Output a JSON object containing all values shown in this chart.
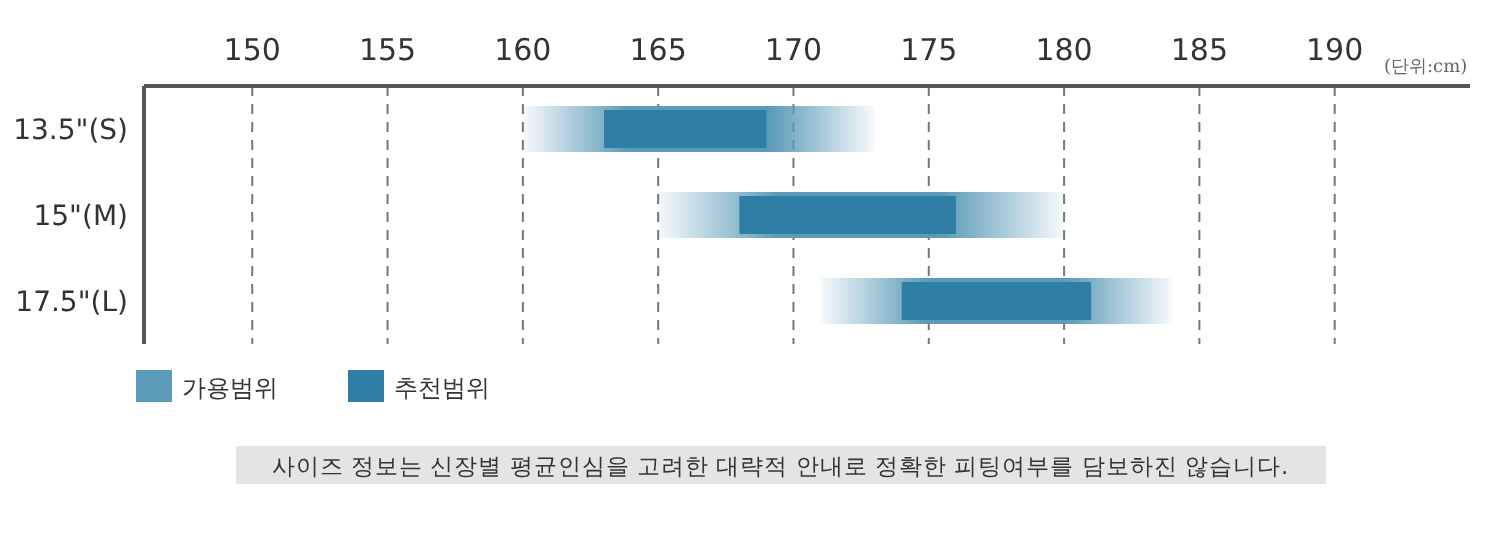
{
  "chart_data": {
    "type": "bar",
    "orientation": "horizontal",
    "categories": [
      "13.5\"(S)",
      "15\"(M)",
      "17.5\"(L)"
    ],
    "series": [
      {
        "name": "가용범위",
        "color": "#5b9ab8",
        "base": [
          160,
          165,
          171
        ],
        "values": [
          13,
          15,
          13
        ]
      },
      {
        "name": "추천범위",
        "color": "#2e7ea5",
        "base": [
          163,
          168,
          174
        ],
        "values": [
          6,
          8,
          7
        ]
      }
    ],
    "xlim": [
      146,
      195
    ],
    "xticks": [
      150,
      155,
      160,
      165,
      170,
      175,
      180,
      185,
      190
    ],
    "grid": "x",
    "legend": "bottom left",
    "annotations": [
      "(단위:cm)",
      "사이즈 정보는 신장별 평균인심을 고려한 대략적 안내로 정확한 피팅여부를 담보하진 않습니다."
    ]
  }
}
